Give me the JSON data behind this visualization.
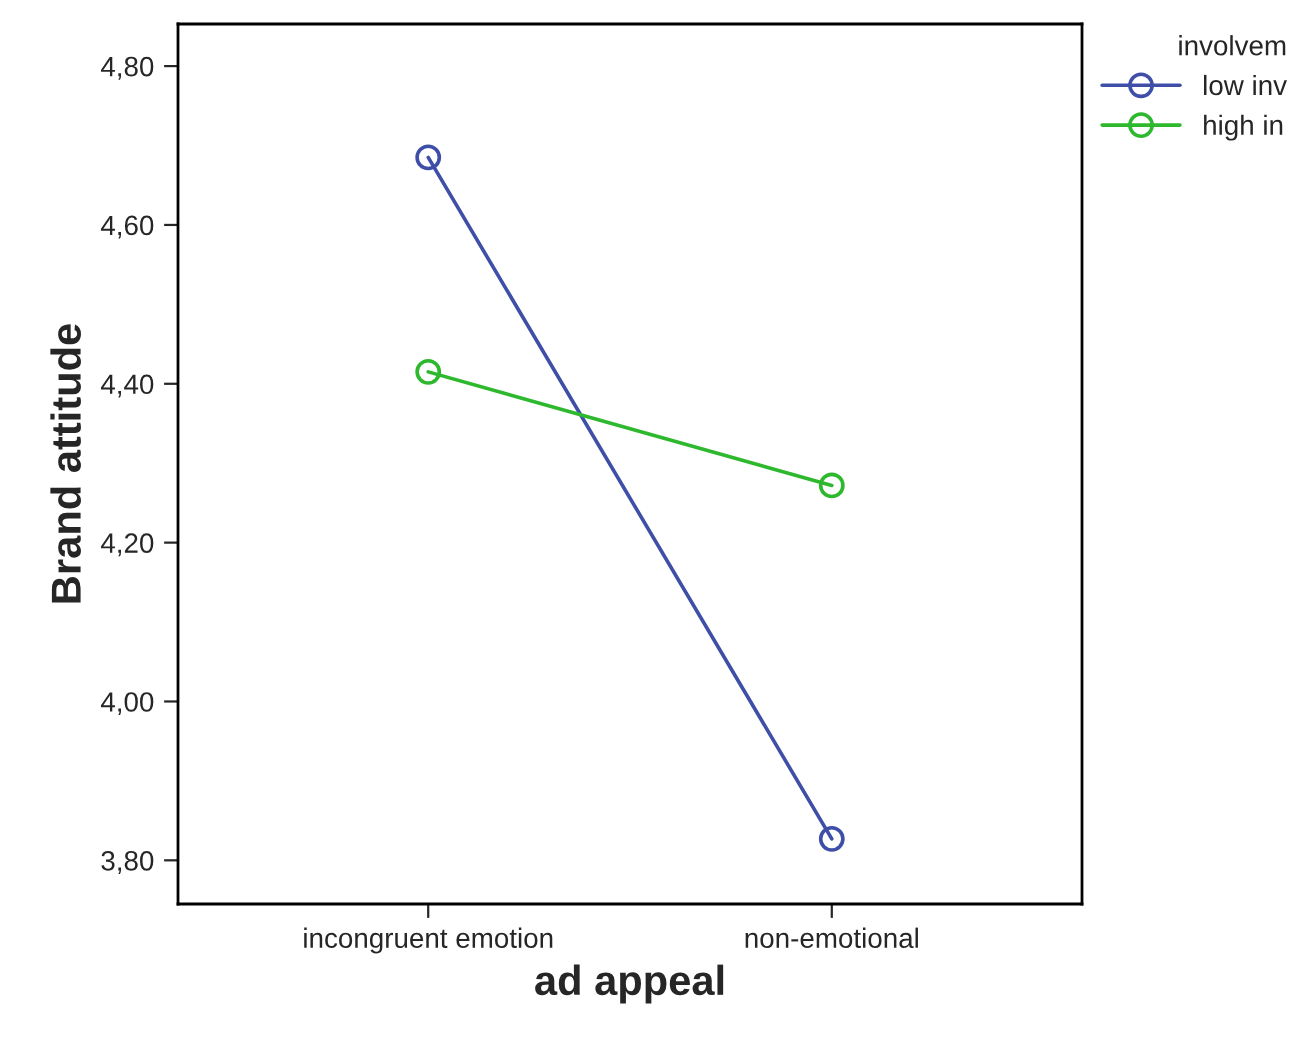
{
  "chart_data": {
    "type": "line",
    "xlabel": "ad appeal",
    "ylabel": "Brand attitude",
    "legend_title": "involvem",
    "categories": [
      "incongruent emotion",
      "non-emotional"
    ],
    "series": [
      {
        "name": "low inv",
        "color": "#3f4fa8",
        "values": [
          4.685,
          3.827
        ]
      },
      {
        "name": "high in",
        "color": "#2db82d",
        "values": [
          4.415,
          4.272
        ]
      }
    ],
    "ylim": [
      3.745,
      4.853
    ],
    "yticks": [
      {
        "value": 3.8,
        "label": "3,80"
      },
      {
        "value": 4.0,
        "label": "4,00"
      },
      {
        "value": 4.2,
        "label": "4,20"
      },
      {
        "value": 4.4,
        "label": "4,40"
      },
      {
        "value": 4.6,
        "label": "4,60"
      },
      {
        "value": 4.8,
        "label": "4,80"
      }
    ],
    "marker": "circle",
    "line_style": "solid",
    "legend": "top right",
    "grid": false
  }
}
